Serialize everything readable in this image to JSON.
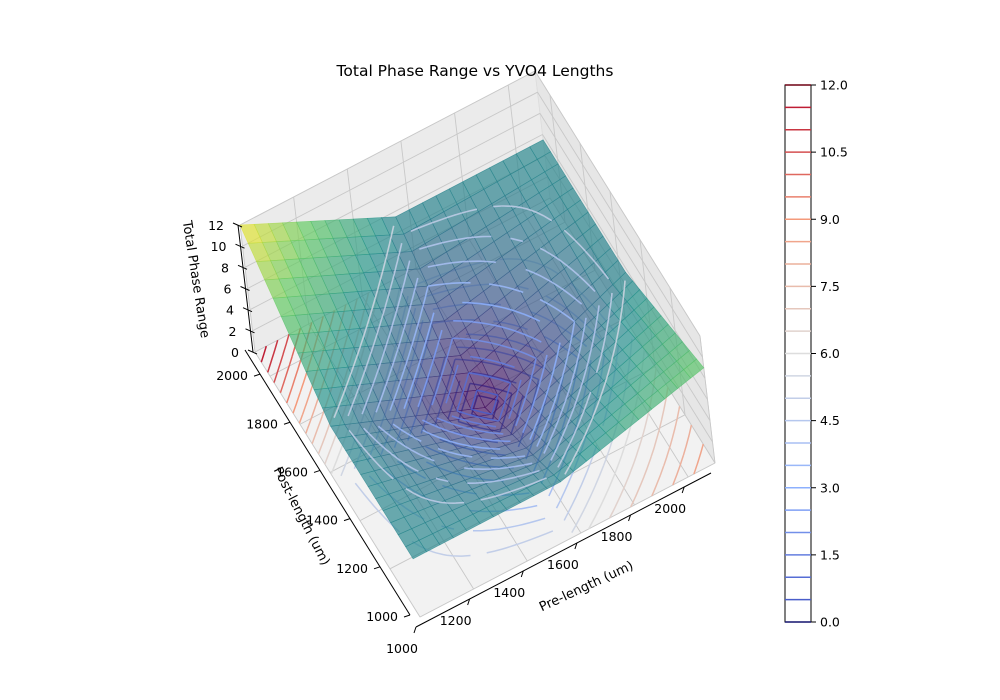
{
  "chart_data": {
    "type": "surface3d",
    "title": "Total Phase Range vs YVO4 Lengths",
    "xlabel": "Pre-length (um)",
    "ylabel": "Post-length (um)",
    "zlabel": "Total Phase Range",
    "xlim": [
      1000,
      2100
    ],
    "ylim": [
      1000,
      2100
    ],
    "zlim": [
      0,
      12
    ],
    "xticks": [
      "1000",
      "1200",
      "1400",
      "1600",
      "1800",
      "2000"
    ],
    "yticks": [
      "1000",
      "1200",
      "1400",
      "1600",
      "1800",
      "2000"
    ],
    "zticks": [
      "0",
      "2",
      "4",
      "6",
      "8",
      "10",
      "12"
    ],
    "surface_colormap": "viridis",
    "contour_colormap": "coolwarm",
    "grid": true,
    "surface": {
      "x": [
        1000,
        1550,
        2100
      ],
      "y": [
        1000,
        1550,
        2100
      ],
      "z": [
        [
          5.5,
          5.5,
          9.0
        ],
        [
          5.5,
          0.0,
          5.5
        ],
        [
          12.0,
          5.5,
          5.5
        ]
      ],
      "note_axis_order": "z[i][j] at x=x[j], y=y[i]"
    },
    "colorbar": {
      "min": 0.0,
      "max": 12.0,
      "tick_labels": [
        "0.0",
        "1.5",
        "3.0",
        "4.5",
        "6.0",
        "7.5",
        "9.0",
        "10.5",
        "12.0"
      ],
      "levels": 24
    }
  }
}
